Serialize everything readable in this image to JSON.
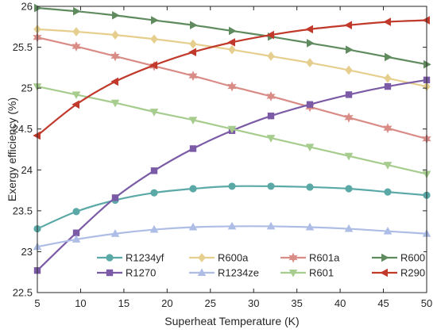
{
  "chart_data": {
    "type": "line",
    "title": "",
    "xlabel": "Superheat Temperature (K)",
    "ylabel": "Exergy efficiency (%)",
    "xlim": [
      5,
      50
    ],
    "ylim": [
      22.5,
      26
    ],
    "xticks": [
      5,
      10,
      15,
      20,
      25,
      30,
      35,
      40,
      45,
      50
    ],
    "yticks": [
      22.5,
      23,
      23.5,
      24,
      24.5,
      25,
      25.5,
      26
    ],
    "grid": false,
    "legend_placement": "bottom-right",
    "x": [
      5,
      9.5,
      14,
      18.5,
      23,
      27.5,
      32,
      36.5,
      41,
      45.5,
      50
    ],
    "series": [
      {
        "name": "R1234yf",
        "color": "#5aa9a6",
        "marker": "circle",
        "values": [
          23.28,
          23.49,
          23.63,
          23.72,
          23.77,
          23.8,
          23.8,
          23.79,
          23.77,
          23.73,
          23.69
        ]
      },
      {
        "name": "R600a",
        "color": "#e6cf8e",
        "marker": "diamond",
        "values": [
          25.72,
          25.69,
          25.65,
          25.6,
          25.54,
          25.47,
          25.39,
          25.31,
          25.22,
          25.12,
          25.02
        ]
      },
      {
        "name": "R601a",
        "color": "#d98b86",
        "marker": "hexagram",
        "values": [
          25.62,
          25.51,
          25.39,
          25.27,
          25.15,
          25.02,
          24.9,
          24.77,
          24.64,
          24.51,
          24.38
        ]
      },
      {
        "name": "R600",
        "color": "#5f8b5f",
        "marker": "triangle-right",
        "values": [
          25.98,
          25.94,
          25.89,
          25.83,
          25.77,
          25.7,
          25.63,
          25.55,
          25.47,
          25.38,
          25.29
        ]
      },
      {
        "name": "R1270",
        "color": "#7b5aa6",
        "marker": "square",
        "values": [
          22.77,
          23.23,
          23.66,
          23.99,
          24.26,
          24.48,
          24.66,
          24.8,
          24.92,
          25.02,
          25.1
        ]
      },
      {
        "name": "R1234ze",
        "color": "#aebde6",
        "marker": "triangle-up",
        "values": [
          23.06,
          23.15,
          23.22,
          23.27,
          23.3,
          23.31,
          23.31,
          23.3,
          23.28,
          23.25,
          23.22
        ]
      },
      {
        "name": "R601",
        "color": "#a6cc8e",
        "marker": "triangle-down",
        "values": [
          25.02,
          24.92,
          24.82,
          24.71,
          24.61,
          24.5,
          24.39,
          24.28,
          24.17,
          24.06,
          23.95
        ]
      },
      {
        "name": "R290",
        "color": "#c0392b",
        "marker": "triangle-left",
        "values": [
          24.42,
          24.8,
          25.08,
          25.28,
          25.44,
          25.56,
          25.65,
          25.72,
          25.77,
          25.81,
          25.83
        ]
      }
    ]
  }
}
